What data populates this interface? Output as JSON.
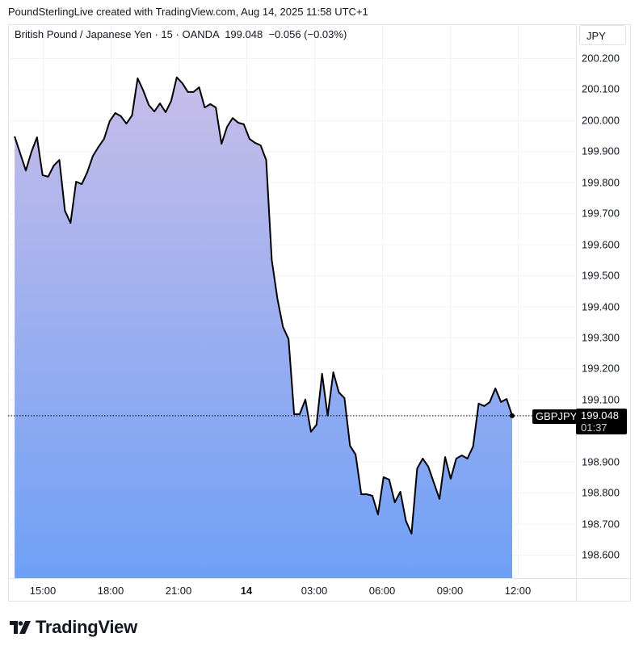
{
  "credit": "PoundSterlingLive created with TradingView.com, Aug 14, 2025 11:58 UTC+1",
  "legend": {
    "name": "British Pound / Japanese Yen",
    "interval": "15",
    "source": "OANDA",
    "last": "199.048",
    "change": "−0.056 (−0.03%)"
  },
  "currency": "JPY",
  "symbol": "GBPJPY",
  "price_label": {
    "price": "199.048",
    "countdown": "01:37"
  },
  "logo": "TradingView",
  "colors": {
    "line": "#000000",
    "fill_top": "#c7bde9",
    "fill_bottom": "#6fa0f6",
    "grid": "#f0f3fa"
  },
  "chart_data": {
    "type": "area",
    "title": "British Pound / Japanese Yen · 15 · OANDA",
    "xlabel": "",
    "ylabel": "",
    "ylim": [
      198.52,
      200.31
    ],
    "grid": true,
    "y_ticks": [
      "200.200",
      "200.100",
      "200.000",
      "199.900",
      "199.800",
      "199.700",
      "199.600",
      "199.500",
      "199.400",
      "199.300",
      "199.200",
      "199.100",
      "198.900",
      "198.800",
      "198.700",
      "198.600"
    ],
    "x_ticks": [
      "15:00",
      "18:00",
      "21:00",
      "14",
      "03:00",
      "06:00",
      "09:00",
      "12:00"
    ],
    "last_time": "11:45",
    "values": [
      199.948,
      199.893,
      199.838,
      199.898,
      199.945,
      199.823,
      199.818,
      199.854,
      199.872,
      199.708,
      199.669,
      199.802,
      199.794,
      199.833,
      199.885,
      199.914,
      199.94,
      199.997,
      200.023,
      200.013,
      199.989,
      200.015,
      200.135,
      200.096,
      200.049,
      200.028,
      200.054,
      200.026,
      200.062,
      200.138,
      200.119,
      200.091,
      200.091,
      200.106,
      200.041,
      200.052,
      200.041,
      199.924,
      199.979,
      200.007,
      199.992,
      199.987,
      199.94,
      199.927,
      199.919,
      199.872,
      199.55,
      199.425,
      199.334,
      199.295,
      199.053,
      199.053,
      199.1,
      198.996,
      199.019,
      199.183,
      199.048,
      199.188,
      199.123,
      199.105,
      198.951,
      198.923,
      198.795,
      198.795,
      198.79,
      198.73,
      198.85,
      198.842,
      198.769,
      198.803,
      198.709,
      198.668,
      198.878,
      198.91,
      198.884,
      198.832,
      198.78,
      198.915,
      198.845,
      198.91,
      198.92,
      198.91,
      198.949,
      199.087,
      199.079,
      199.092,
      199.136,
      199.092,
      199.102,
      199.048
    ],
    "last_price": 199.048
  }
}
